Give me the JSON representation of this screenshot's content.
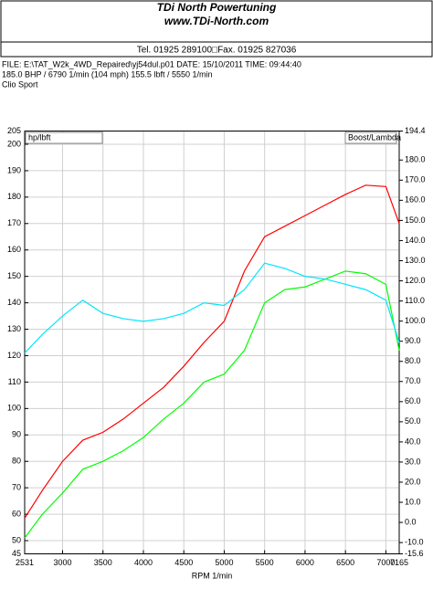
{
  "header": {
    "title": "TDi North Powertuning",
    "website": "www.TDi-North.com",
    "contact": "Tel. 01925 289100□Fax. 01925 827036"
  },
  "info": {
    "file_line": "FILE: E:\\TAT_W2k_4WD_Repaired\\yj54dul.p01  DATE: 15/10/2011  TIME: 09:44:40",
    "result_line": "185.0 BHP / 6790 1/min (104 mph)    155.5 lbft / 5550 1/min",
    "car": "Clio Sport"
  },
  "chart_data": {
    "type": "line",
    "x_label": "RPM  1/min",
    "left_box": "hp/lbft",
    "right_box": "Boost/Lambda",
    "x": [
      2531,
      2750,
      3000,
      3250,
      3500,
      3750,
      4000,
      4250,
      4500,
      4750,
      5000,
      5250,
      5500,
      5750,
      6000,
      6250,
      6500,
      6750,
      7000,
      7165
    ],
    "series": [
      {
        "color": "#ff0000",
        "values": [
          58.5,
          69,
          80,
          88,
          91,
          96,
          102,
          108,
          116,
          125,
          133,
          152,
          165,
          169,
          173,
          177,
          181,
          184.5,
          184,
          170
        ]
      },
      {
        "color": "#00ff00",
        "values": [
          51,
          60,
          68,
          77,
          80,
          84,
          89,
          96,
          102,
          110,
          113,
          122,
          140,
          145,
          146,
          149,
          152,
          151,
          147,
          122
        ]
      },
      {
        "color": "#00e5ff",
        "values": [
          121,
          128,
          135,
          141,
          136,
          134,
          133,
          134,
          136,
          140,
          139,
          145,
          155,
          153,
          150,
          149,
          147,
          145,
          141,
          125
        ]
      }
    ],
    "xlim": [
      2531,
      7165
    ],
    "xticks": [
      2531,
      3000,
      3500,
      4000,
      4500,
      5000,
      5500,
      6000,
      6500,
      7000,
      7165
    ],
    "ylim": [
      45,
      205
    ],
    "yticks": [
      45,
      50,
      60,
      70,
      80,
      90,
      100,
      110,
      120,
      130,
      140,
      150,
      160,
      170,
      180,
      190,
      200,
      205
    ],
    "y2lim": [
      -15.6,
      194.4
    ],
    "y2ticks": [
      -15.6,
      {
        "value": -10,
        "label": "-10.0"
      },
      {
        "value": 0,
        "label": "0.0"
      },
      {
        "value": 10,
        "label": "10.0"
      },
      {
        "value": 20,
        "label": "20.0"
      },
      {
        "value": 30,
        "label": "30.0"
      },
      {
        "value": 40,
        "label": "40.0"
      },
      {
        "value": 50,
        "label": "50.0"
      },
      {
        "value": 60,
        "label": "60.0"
      },
      {
        "value": 70,
        "label": "70.0"
      },
      {
        "value": 80,
        "label": "80.0"
      },
      {
        "value": 90,
        "label": "90.0"
      },
      {
        "value": 100,
        "label": "100.0"
      },
      {
        "value": 110,
        "label": "110.0"
      },
      {
        "value": 120,
        "label": "120.0"
      },
      {
        "value": 130,
        "label": "130.0"
      },
      {
        "value": 140,
        "label": "140.0"
      },
      {
        "value": 150,
        "label": "150.0"
      },
      {
        "value": 160,
        "label": "160.0"
      },
      {
        "value": 170,
        "label": "170.0"
      },
      {
        "value": 180,
        "label": "180.0"
      },
      194.4
    ],
    "grid": true
  }
}
